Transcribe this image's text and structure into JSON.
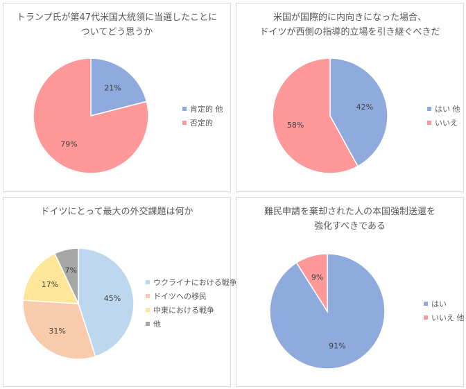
{
  "chart_data": [
    {
      "type": "pie",
      "title": "トランプ氏が第47代米国大統領に当選したことについてどう思うか",
      "title_lines": [
        "トランプ氏が第47代米国大統領に当選したことに",
        "ついてどう思うか"
      ],
      "categories": [
        "肯定的 他",
        "否定的"
      ],
      "values": [
        21,
        79
      ],
      "labels": [
        "21%",
        "79%"
      ],
      "colors": [
        "#8faadc",
        "#ff9999"
      ],
      "legend_position": "right"
    },
    {
      "type": "pie",
      "title": "米国が国際的に内向きになった場合、ドイツが西側の指導的立場を引き継ぐべきだ",
      "title_lines": [
        "米国が国際的に内向きになった場合、",
        "ドイツが西側の指導的立場を引き継ぐべきだ"
      ],
      "categories": [
        "はい 他",
        "いいえ"
      ],
      "values": [
        42,
        58
      ],
      "labels": [
        "42%",
        "58%"
      ],
      "colors": [
        "#8faadc",
        "#ff9999"
      ],
      "legend_position": "right"
    },
    {
      "type": "pie",
      "title": "ドイツにとって最大の外交課題は何か",
      "title_lines": [
        "ドイツにとって最大の外交課題は何か"
      ],
      "categories": [
        "ウクライナにおける戦争",
        "ドイツへの移民",
        "中東における戦争",
        "他"
      ],
      "values": [
        45,
        31,
        17,
        7
      ],
      "labels": [
        "45%",
        "31%",
        "17%",
        "7%"
      ],
      "colors": [
        "#bdd7ee",
        "#f8cbad",
        "#ffe699",
        "#a6a6a6"
      ],
      "legend_position": "right"
    },
    {
      "type": "pie",
      "title": "難民申請を棄却された人の本国強制送還を強化すべきである",
      "title_lines": [
        "難民申請を棄却された人の本国強制送還を",
        "強化すべきである"
      ],
      "categories": [
        "はい",
        "いいえ 他"
      ],
      "values": [
        91,
        9
      ],
      "labels": [
        "91%",
        "9%"
      ],
      "colors": [
        "#8faadc",
        "#ff9999"
      ],
      "legend_position": "right"
    }
  ]
}
